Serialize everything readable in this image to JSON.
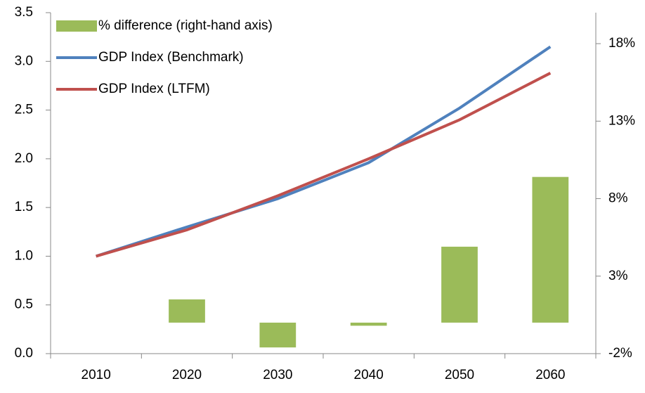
{
  "chart_data": {
    "type": "bar-line",
    "categories": [
      "2010",
      "2020",
      "2030",
      "2040",
      "2050",
      "2060"
    ],
    "series": [
      {
        "name": "% difference (right-hand axis)",
        "color": "#9bbb59",
        "type": "bar",
        "axis": "y2",
        "values": [
          null,
          1.5,
          -1.6,
          -0.2,
          4.9,
          9.4
        ]
      },
      {
        "name": "GDP Index (Benchmark)",
        "color": "#4f81bd",
        "type": "line",
        "values": [
          1.0,
          1.3,
          1.59,
          1.96,
          2.52,
          3.15
        ]
      },
      {
        "name": "GDP Index (LTFM)",
        "color": "#c0504d",
        "type": "line",
        "values": [
          1.0,
          1.27,
          1.62,
          2.0,
          2.4,
          2.88
        ]
      }
    ],
    "ylim": [
      0,
      3.5
    ],
    "yticks": [
      {
        "value": 0,
        "label": "0.0"
      },
      0.5,
      {
        "value": 1,
        "label": "1.0"
      },
      1.5,
      {
        "value": 2,
        "label": "2.0"
      },
      2.5,
      {
        "value": 3,
        "label": "3.0"
      },
      3.5
    ],
    "y2lim": [
      -2,
      20
    ],
    "y2ticks": [
      {
        "value": -2,
        "label": "-2%"
      },
      {
        "value": 3,
        "label": "3%"
      },
      {
        "value": 8,
        "label": "8%"
      },
      {
        "value": 13,
        "label": "13%"
      },
      {
        "value": 18,
        "label": "18%"
      }
    ],
    "legend": "upper left"
  }
}
